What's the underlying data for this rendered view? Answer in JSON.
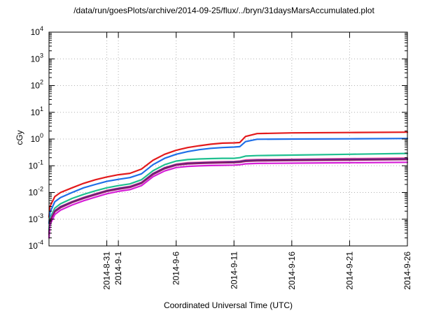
{
  "chart_data": {
    "type": "line",
    "title": "/data/run/goesPlots/archive/2014-09-25/flux/../bryn/31daysMarsAccumulated.plot",
    "xlabel": "Coordinated Universal Time (UTC)",
    "ylabel": "cGy",
    "yscale": "log",
    "ylim": [
      0.0001,
      10000
    ],
    "xlim": [
      "2014-08-26",
      "2014-09-26"
    ],
    "grid": true,
    "y_ticks": [
      {
        "value": 0.0001,
        "base": "10",
        "exp": "-4"
      },
      {
        "value": 0.001,
        "base": "10",
        "exp": "-3"
      },
      {
        "value": 0.01,
        "base": "10",
        "exp": "-2"
      },
      {
        "value": 0.1,
        "base": "10",
        "exp": "-1"
      },
      {
        "value": 1,
        "base": "10",
        "exp": "0"
      },
      {
        "value": 10,
        "base": "10",
        "exp": "1"
      },
      {
        "value": 100,
        "base": "10",
        "exp": "2"
      },
      {
        "value": 1000,
        "base": "10",
        "exp": "3"
      },
      {
        "value": 10000,
        "base": "10",
        "exp": "4"
      }
    ],
    "x_ticks": [
      {
        "date": "2014-08-31",
        "label": "2014-8-31"
      },
      {
        "date": "2014-09-01",
        "label": "2014-9-1"
      },
      {
        "date": "2014-09-06",
        "label": "2014-9-6"
      },
      {
        "date": "2014-09-11",
        "label": "2014-9-11"
      },
      {
        "date": "2014-09-16",
        "label": "2014-9-16"
      },
      {
        "date": "2014-09-21",
        "label": "2014-9-21"
      },
      {
        "date": "2014-09-26",
        "label": "2014-9-26"
      }
    ],
    "x": [
      "2014-08-26T00:00",
      "2014-08-26T02:00",
      "2014-08-26T12:00",
      "2014-08-27",
      "2014-08-28",
      "2014-08-29",
      "2014-08-30",
      "2014-08-31",
      "2014-09-01",
      "2014-09-02",
      "2014-09-03",
      "2014-09-04",
      "2014-09-05",
      "2014-09-06",
      "2014-09-07",
      "2014-09-08",
      "2014-09-09",
      "2014-09-10",
      "2014-09-11",
      "2014-09-11T12:00",
      "2014-09-12",
      "2014-09-13",
      "2014-09-16",
      "2014-09-21",
      "2014-09-26"
    ],
    "series": [
      {
        "color": "#e31a1c",
        "values": [
          0.0012,
          0.003,
          0.007,
          0.01,
          0.015,
          0.022,
          0.03,
          0.038,
          0.046,
          0.052,
          0.075,
          0.16,
          0.27,
          0.38,
          0.48,
          0.56,
          0.64,
          0.7,
          0.72,
          0.74,
          1.25,
          1.6,
          1.7,
          1.75,
          1.8
        ]
      },
      {
        "color": "#1f6fe8",
        "values": [
          0.0007,
          0.0018,
          0.0045,
          0.0065,
          0.01,
          0.015,
          0.02,
          0.026,
          0.031,
          0.036,
          0.05,
          0.11,
          0.19,
          0.27,
          0.34,
          0.4,
          0.45,
          0.48,
          0.5,
          0.52,
          0.8,
          0.98,
          1.0,
          1.02,
          1.05
        ]
      },
      {
        "color": "#1fbf8f",
        "values": [
          0.0004,
          0.0011,
          0.0026,
          0.0038,
          0.006,
          0.0085,
          0.0115,
          0.015,
          0.018,
          0.021,
          0.03,
          0.065,
          0.11,
          0.15,
          0.17,
          0.18,
          0.185,
          0.19,
          0.19,
          0.2,
          0.23,
          0.24,
          0.25,
          0.27,
          0.29
        ]
      },
      {
        "color": "#ff4fa3",
        "values": [
          0.0003,
          0.0009,
          0.0021,
          0.003,
          0.0046,
          0.0066,
          0.009,
          0.012,
          0.0145,
          0.017,
          0.024,
          0.052,
          0.086,
          0.115,
          0.13,
          0.135,
          0.14,
          0.142,
          0.145,
          0.15,
          0.165,
          0.17,
          0.175,
          0.185,
          0.195
        ]
      },
      {
        "color": "#2a2a8c",
        "values": [
          0.00028,
          0.00085,
          0.002,
          0.0029,
          0.0044,
          0.0063,
          0.0086,
          0.0115,
          0.014,
          0.0162,
          0.023,
          0.05,
          0.082,
          0.11,
          0.123,
          0.128,
          0.132,
          0.135,
          0.138,
          0.142,
          0.155,
          0.16,
          0.165,
          0.172,
          0.18
        ]
      },
      {
        "color": "#8a1a6a",
        "values": [
          0.00026,
          0.0008,
          0.0019,
          0.0027,
          0.0042,
          0.006,
          0.0082,
          0.011,
          0.0133,
          0.0155,
          0.022,
          0.047,
          0.078,
          0.105,
          0.117,
          0.122,
          0.126,
          0.129,
          0.131,
          0.135,
          0.147,
          0.152,
          0.157,
          0.163,
          0.17
        ]
      },
      {
        "color": "#d61ed6",
        "values": [
          0.0002,
          0.00062,
          0.0015,
          0.0022,
          0.0034,
          0.0049,
          0.0067,
          0.009,
          0.011,
          0.0128,
          0.018,
          0.039,
          0.064,
          0.086,
          0.095,
          0.099,
          0.102,
          0.104,
          0.106,
          0.109,
          0.118,
          0.122,
          0.125,
          0.13,
          0.135
        ]
      }
    ]
  }
}
